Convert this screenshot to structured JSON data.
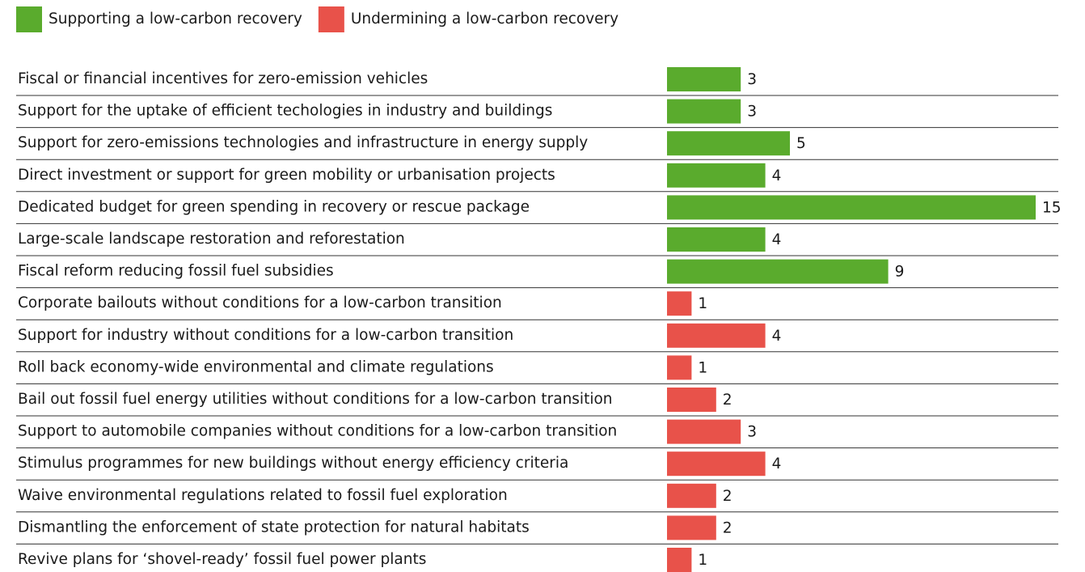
{
  "chart_data": {
    "type": "bar",
    "orientation": "horizontal",
    "categories": [
      "Fiscal or financial incentives for zero-emission vehicles",
      "Support for the uptake of efficient techologies in industry and buildings",
      "Support for zero-emissions technologies and infrastructure in energy supply",
      "Direct investment or support for green mobility or urbanisation projects",
      "Dedicated budget for green spending in recovery or rescue package",
      "Large-scale landscape restoration and reforestation",
      "Fiscal reform reducing fossil fuel subsidies",
      "Corporate bailouts without conditions for a low-carbon transition",
      "Support for industry without conditions for a low-carbon transition",
      "Roll back economy-wide environmental and climate regulations",
      "Bail out fossil fuel energy utilities without conditions for a low-carbon transition",
      "Support to automobile companies without conditions for a low-carbon transition",
      "Stimulus programmes for new buildings without energy efficiency criteria",
      "Waive environmental regulations related to fossil fuel exploration",
      "Dismantling the enforcement of state protection for natural habitats",
      "Revive plans for ‘shovel-ready’ fossil fuel power plants"
    ],
    "series": [
      {
        "name": "Supporting a low-carbon recovery",
        "color": "#5aab2d",
        "values": [
          3,
          3,
          5,
          4,
          15,
          4,
          9,
          null,
          null,
          null,
          null,
          null,
          null,
          null,
          null,
          null
        ]
      },
      {
        "name": "Undermining a low-carbon recovery",
        "color": "#e8524a",
        "values": [
          null,
          null,
          null,
          null,
          null,
          null,
          null,
          1,
          4,
          1,
          2,
          3,
          4,
          2,
          2,
          1
        ]
      }
    ],
    "xlim": [
      0,
      15
    ],
    "legend": "top-left"
  }
}
